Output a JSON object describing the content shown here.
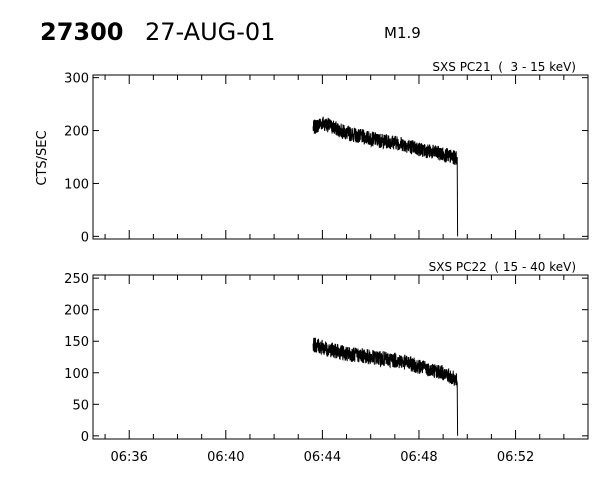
{
  "header": {
    "event_id": "27300",
    "date": "27-AUG-01",
    "flare_class": "M1.9"
  },
  "chart_data": [
    {
      "type": "line",
      "label": "SXS PC21  (  3 - 15 keV)",
      "ylabel": "CTS/SEC",
      "xlim": [
        "06:34:30",
        "06:55:00"
      ],
      "ylim": [
        -5,
        305
      ],
      "yticks": [
        0,
        100,
        200,
        300
      ],
      "xticks": [
        "06:36",
        "06:40",
        "06:44",
        "06:48",
        "06:52"
      ],
      "series": [
        {
          "x": [
            "06:43:37",
            "06:44:00",
            "06:44:30",
            "06:45:00",
            "06:45:30",
            "06:46:00",
            "06:46:30",
            "06:47:00",
            "06:47:30",
            "06:48:00",
            "06:48:30",
            "06:49:00",
            "06:49:30",
            "06:49:35",
            "06:49:36"
          ],
          "y": [
            205,
            215,
            205,
            195,
            190,
            185,
            180,
            178,
            172,
            165,
            160,
            155,
            148,
            150,
            0
          ],
          "noise": 14
        }
      ]
    },
    {
      "type": "line",
      "label": "SXS PC22  ( 15 - 40 keV)",
      "ylabel": "",
      "xlim": [
        "06:34:30",
        "06:55:00"
      ],
      "ylim": [
        -5,
        255
      ],
      "yticks": [
        0,
        50,
        100,
        150,
        200,
        250
      ],
      "xticks": [
        "06:36",
        "06:40",
        "06:44",
        "06:48",
        "06:52"
      ],
      "series": [
        {
          "x": [
            "06:43:37",
            "06:44:00",
            "06:44:30",
            "06:45:00",
            "06:45:30",
            "06:46:00",
            "06:46:30",
            "06:47:00",
            "06:47:30",
            "06:48:00",
            "06:48:30",
            "06:49:00",
            "06:49:30",
            "06:49:35",
            "06:49:36"
          ],
          "y": [
            145,
            140,
            135,
            130,
            128,
            125,
            122,
            120,
            116,
            110,
            105,
            100,
            90,
            85,
            0
          ],
          "noise": 12
        }
      ]
    }
  ]
}
